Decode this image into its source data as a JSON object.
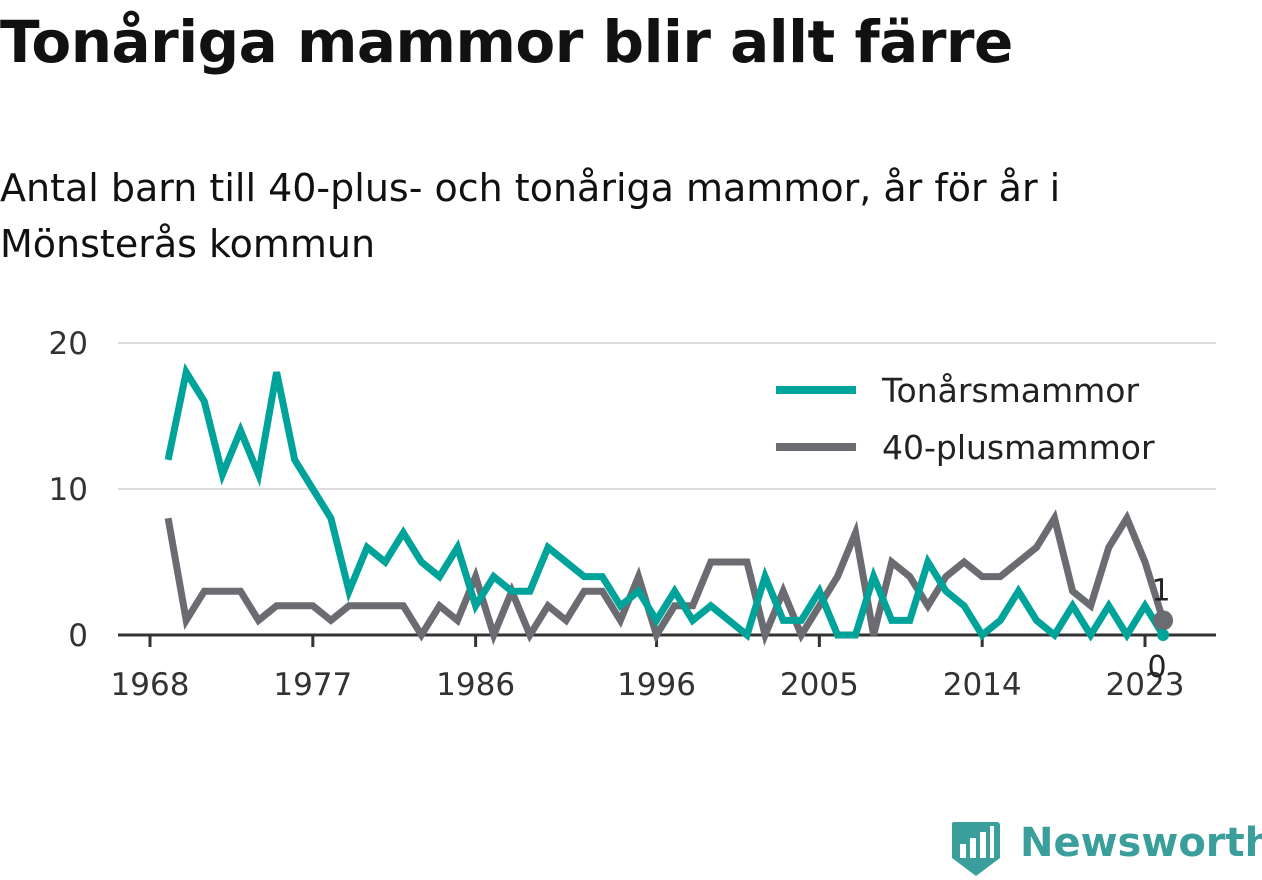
{
  "chart_data": {
    "type": "line",
    "title": "Tonåriga mammor blir allt färre",
    "subtitle": "Antal barn till 40-plus- och tonåriga mammor, år för år i Mönsterås kommun",
    "xlabel": "",
    "ylabel": "",
    "x_ticks": [
      "1968",
      "1977",
      "1986",
      "1996",
      "2005",
      "2014",
      "2023"
    ],
    "y_ticks": [
      "0",
      "10",
      "20"
    ],
    "xlim": [
      1968,
      2024
    ],
    "ylim": [
      0,
      20
    ],
    "grid": true,
    "legend_position": "top-right",
    "x": [
      1969,
      1970,
      1971,
      1972,
      1973,
      1974,
      1975,
      1976,
      1977,
      1978,
      1979,
      1980,
      1981,
      1982,
      1983,
      1984,
      1985,
      1986,
      1987,
      1988,
      1989,
      1990,
      1991,
      1992,
      1993,
      1994,
      1995,
      1996,
      1997,
      1998,
      1999,
      2000,
      2001,
      2002,
      2003,
      2004,
      2005,
      2006,
      2007,
      2008,
      2009,
      2010,
      2011,
      2012,
      2013,
      2014,
      2015,
      2016,
      2017,
      2018,
      2019,
      2020,
      2021,
      2022,
      2023,
      2024
    ],
    "series": [
      {
        "name": "Tonårsmammor",
        "color": "#00a39a",
        "values": [
          12,
          18,
          16,
          11,
          14,
          11,
          18,
          12,
          10,
          8,
          3,
          6,
          5,
          7,
          5,
          4,
          6,
          2,
          4,
          3,
          3,
          6,
          5,
          4,
          4,
          2,
          3,
          1,
          3,
          1,
          2,
          1,
          0,
          4,
          1,
          1,
          3,
          0,
          0,
          4,
          1,
          1,
          5,
          3,
          2,
          0,
          1,
          3,
          1,
          0,
          2,
          0,
          2,
          0,
          2,
          0
        ]
      },
      {
        "name": "40-plusmammor",
        "color": "#6b6b72",
        "values": [
          8,
          1,
          3,
          3,
          3,
          1,
          2,
          2,
          2,
          1,
          2,
          2,
          2,
          2,
          0,
          2,
          1,
          4,
          0,
          3,
          0,
          2,
          1,
          3,
          3,
          1,
          4,
          0,
          2,
          2,
          5,
          5,
          5,
          0,
          3,
          0,
          2,
          4,
          7,
          0,
          5,
          4,
          2,
          4,
          5,
          4,
          4,
          5,
          6,
          8,
          3,
          2,
          6,
          8,
          5,
          1
        ]
      }
    ],
    "end_labels": [
      "1",
      "0"
    ]
  },
  "branding": {
    "logo_text": "Newsworthy",
    "logo_icon": "bar-chart-badge-icon",
    "logo_color": "#3a9e9b"
  }
}
